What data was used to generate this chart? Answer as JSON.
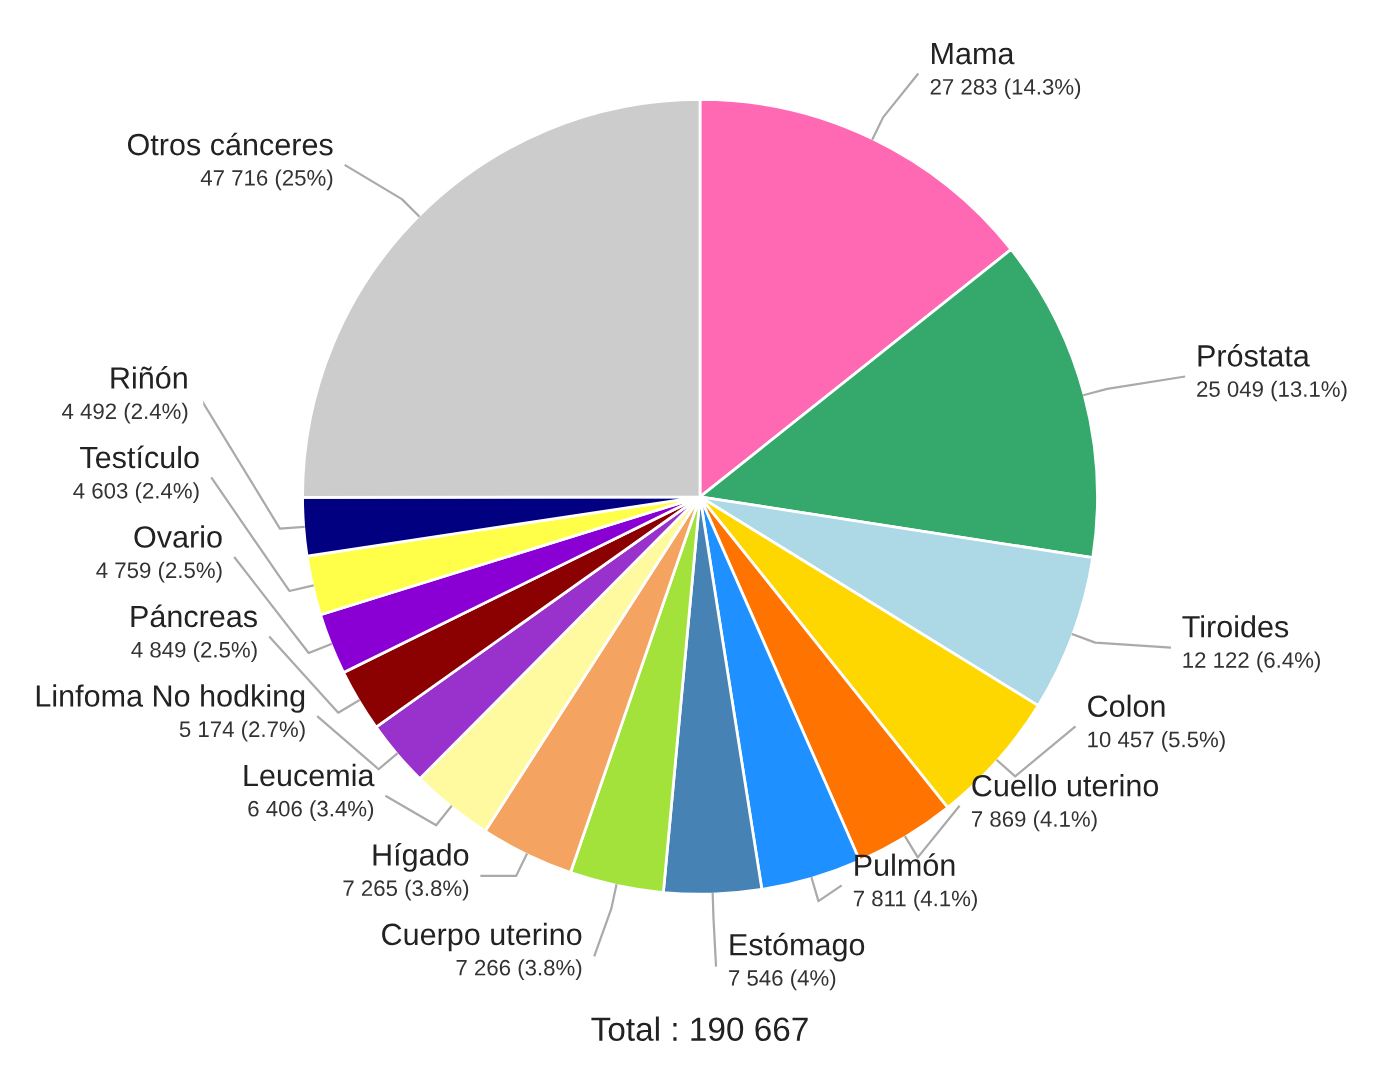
{
  "chart_data": {
    "type": "pie",
    "categories": [
      "Mama",
      "Próstata",
      "Tiroides",
      "Colon",
      "Cuello uterino",
      "Pulmón",
      "Estómago",
      "Cuerpo uterino",
      "Hígado",
      "Leucemia",
      "Linfoma No hodking",
      "Páncreas",
      "Ovario",
      "Testículo",
      "Riñón",
      "Otros cánceres"
    ],
    "values": [
      27283,
      25049,
      12122,
      10457,
      7869,
      7811,
      7546,
      7266,
      7265,
      6406,
      5174,
      4849,
      4759,
      4603,
      4492,
      47716
    ],
    "value_labels": [
      "27 283 (14.3%)",
      "25 049 (13.1%)",
      "12 122 (6.4%)",
      "10 457 (5.5%)",
      "7 869 (4.1%)",
      "7 811 (4.1%)",
      "7 546 (4%)",
      "7 266 (3.8%)",
      "7 265 (3.8%)",
      "6 406 (3.4%)",
      "5 174 (2.7%)",
      "4 849 (2.5%)",
      "4 759 (2.5%)",
      "4 603 (2.4%)",
      "4 492 (2.4%)",
      "47 716 (25%)"
    ],
    "colors": [
      "#ff69b4",
      "#35a86c",
      "#add8e6",
      "#ffd700",
      "#ff7400",
      "#1e90ff",
      "#4682b4",
      "#a2e23a",
      "#f4a460",
      "#fffaa0",
      "#9932cc",
      "#8b0000",
      "#8a00d4",
      "#ffff4a",
      "#000080",
      "#cccccc"
    ],
    "annotations": [
      "Total : 190 667"
    ]
  }
}
